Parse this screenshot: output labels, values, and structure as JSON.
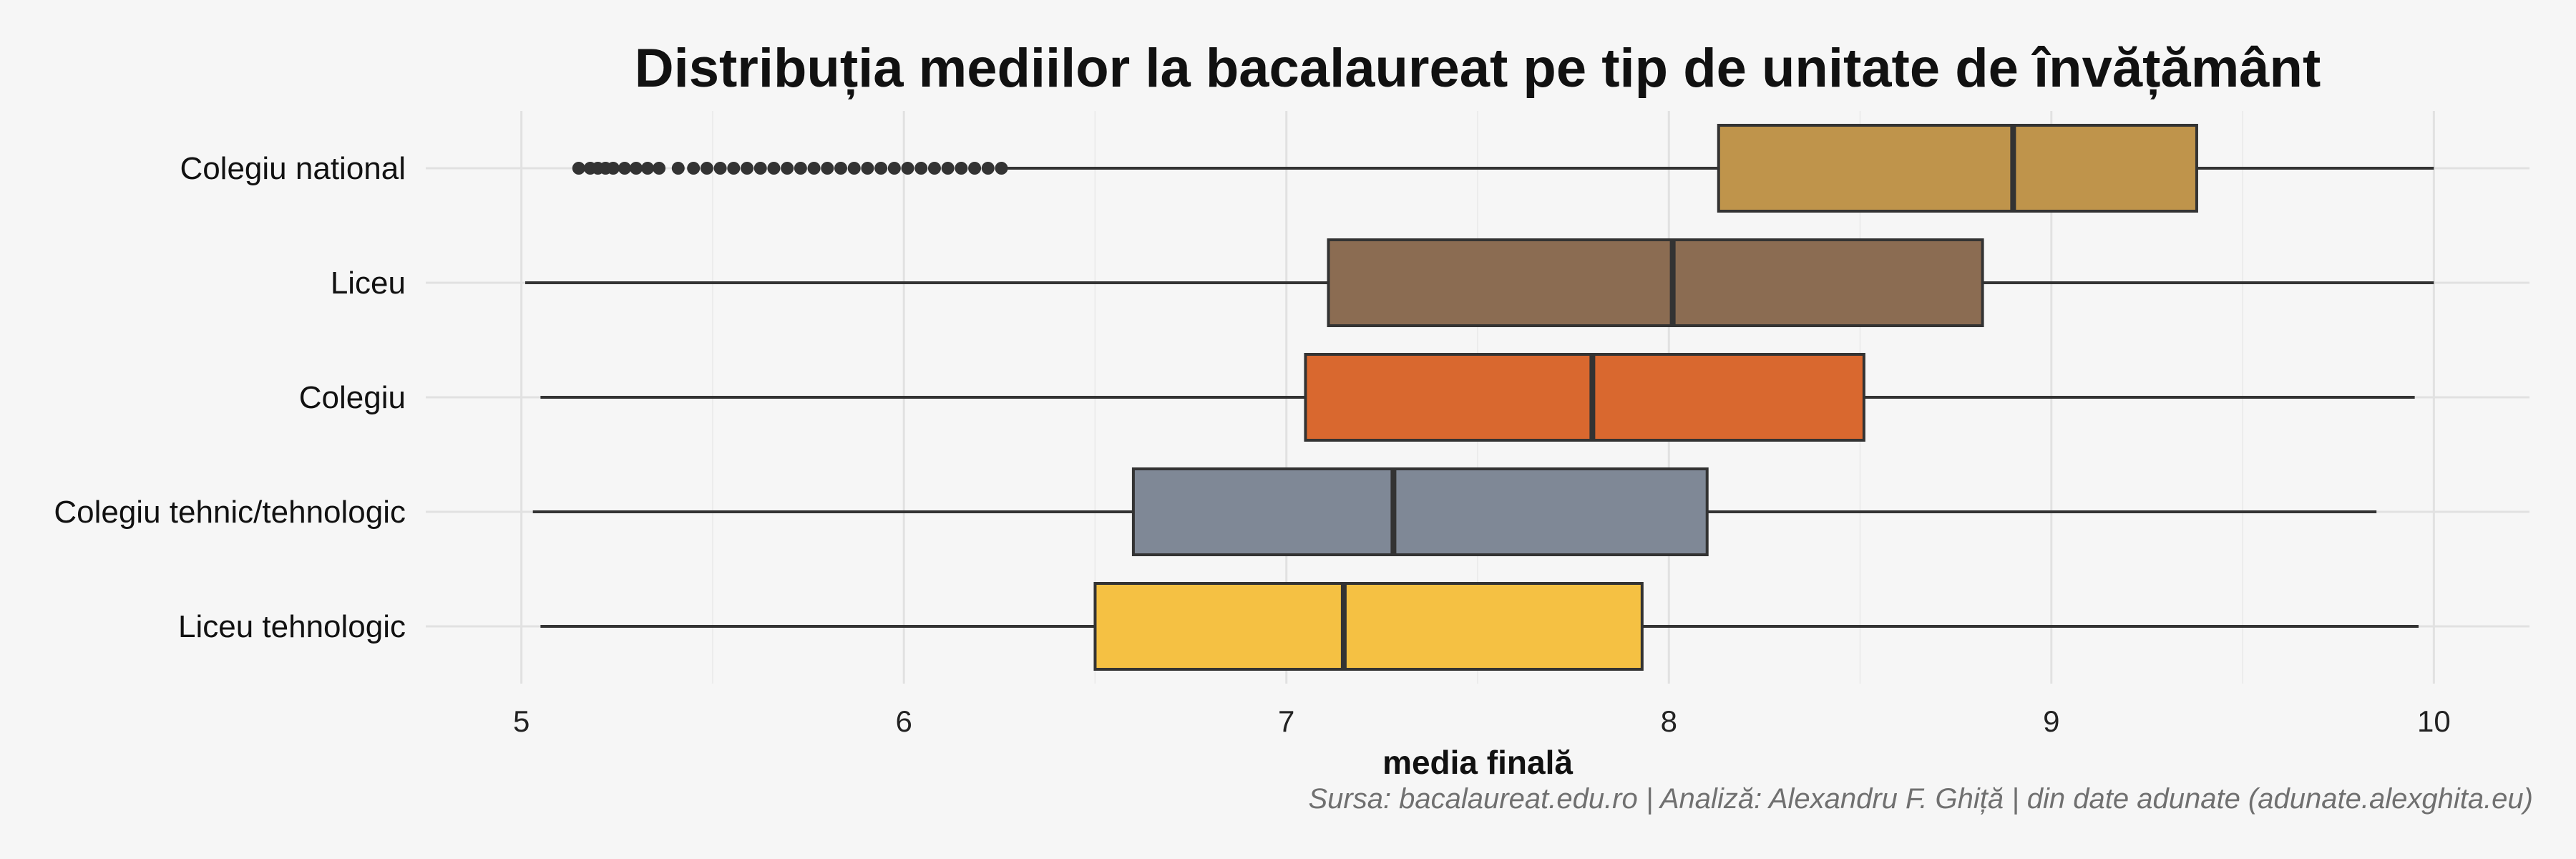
{
  "chart_data": {
    "type": "boxplot",
    "title": "Distribuția mediilor la bacalaureat pe tip de unitate de învățământ",
    "xlabel": "media finală",
    "ylabel": "",
    "caption": "Sursa: bacalaureat.edu.ro | Analiză: Alexandru F. Ghiță | din date adunate (adunate.alexghita.eu)",
    "xlim": [
      4.75,
      10.25
    ],
    "xticks": [
      5,
      6,
      7,
      8,
      9,
      10
    ],
    "grid": true,
    "legend": "none",
    "categories": [
      "Colegiu national",
      "Liceu",
      "Colegiu",
      "Colegiu tehnic/tehnologic",
      "Liceu tehnologic"
    ],
    "series": [
      {
        "category": "Colegiu national",
        "whisker_low": 6.27,
        "q1": 8.13,
        "median": 8.9,
        "q3": 9.38,
        "whisker_high": 10.0,
        "outliers_range": [
          5.15,
          6.26
        ],
        "color": "#bf944b"
      },
      {
        "category": "Liceu",
        "whisker_low": 5.01,
        "q1": 7.11,
        "median": 8.01,
        "q3": 8.82,
        "whisker_high": 10.0,
        "color": "#8b6c52"
      },
      {
        "category": "Colegiu",
        "whisker_low": 5.05,
        "q1": 7.05,
        "median": 7.8,
        "q3": 8.51,
        "whisker_high": 9.95,
        "color": "#d9682f"
      },
      {
        "category": "Colegiu tehnic/tehnologic",
        "whisker_low": 5.03,
        "q1": 6.6,
        "median": 7.28,
        "q3": 8.1,
        "whisker_high": 9.85,
        "color": "#7f8896"
      },
      {
        "category": "Liceu tehnologic",
        "whisker_low": 5.05,
        "q1": 6.5,
        "median": 7.15,
        "q3": 7.93,
        "whisker_high": 9.96,
        "color": "#f5c143"
      }
    ]
  }
}
